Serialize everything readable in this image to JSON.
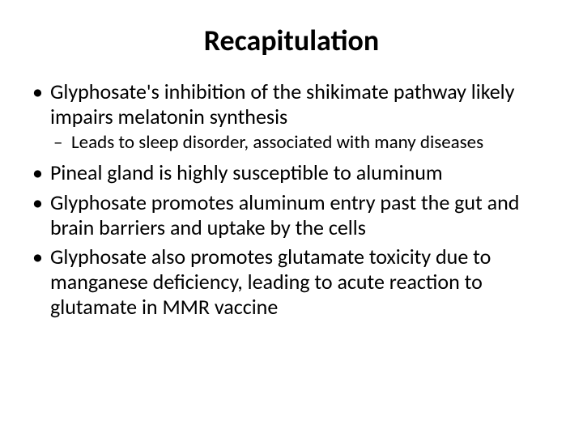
{
  "slide": {
    "title": "Recapitulation",
    "title_fontsize": 36,
    "title_weight": 700,
    "title_color": "#000000",
    "background_color": "#ffffff",
    "body_color": "#000000",
    "level1_fontsize": 26,
    "level2_fontsize": 23,
    "line_height": 1.18,
    "bullets": [
      {
        "text": "Glyphosate's inhibition of the shikimate pathway likely impairs melatonin synthesis",
        "sub": [
          {
            "text": "Leads to sleep disorder, associated with many diseases"
          }
        ]
      },
      {
        "text": "Pineal gland is highly susceptible to aluminum"
      },
      {
        "text": "Glyphosate promotes aluminum entry past the gut and brain barriers and uptake by the cells"
      },
      {
        "text": "Glyphosate also promotes glutamate toxicity due to manganese deficiency, leading to acute reaction to glutamate in MMR vaccine"
      }
    ]
  }
}
